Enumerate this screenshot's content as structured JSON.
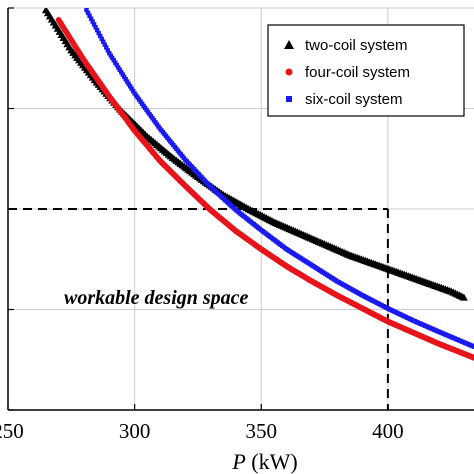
{
  "chart_data": {
    "type": "scatter",
    "xlabel": {
      "italic": "P",
      "unit": " (kW)"
    },
    "ylabel": "",
    "xlim": [
      250,
      434
    ],
    "ylim": [
      0,
      4
    ],
    "x_ticks": [
      250,
      300,
      350,
      400
    ],
    "x_tick_labels": [
      "250",
      "300",
      "350",
      "400"
    ],
    "y_ticks": [
      0,
      1,
      2,
      3,
      4
    ],
    "grid": true,
    "legend_position": "top-right",
    "series": [
      {
        "name": "two-coil system",
        "marker": "triangle",
        "color": "#000000",
        "x": [
          265,
          275,
          285,
          295,
          305,
          315,
          325,
          335,
          345,
          355,
          365,
          375,
          385,
          395,
          405,
          415,
          425,
          430
        ],
        "y": [
          3.98,
          3.58,
          3.26,
          2.97,
          2.72,
          2.51,
          2.32,
          2.14,
          2.0,
          1.87,
          1.76,
          1.65,
          1.54,
          1.45,
          1.36,
          1.27,
          1.18,
          1.12
        ]
      },
      {
        "name": "four-coil system",
        "marker": "circle",
        "color": "#e8141b",
        "x": [
          270,
          280,
          290,
          300,
          310,
          320,
          330,
          340,
          350,
          360,
          370,
          380,
          390,
          400,
          410,
          420,
          434
        ],
        "y": [
          3.88,
          3.48,
          3.12,
          2.78,
          2.48,
          2.23,
          1.99,
          1.78,
          1.6,
          1.43,
          1.28,
          1.14,
          1.01,
          0.88,
          0.77,
          0.66,
          0.52
        ]
      },
      {
        "name": "six-coil system",
        "marker": "square",
        "color": "#1a1aee",
        "x": [
          281,
          290,
          300,
          310,
          320,
          330,
          340,
          350,
          360,
          370,
          380,
          390,
          400,
          410,
          420,
          434
        ],
        "y": [
          3.98,
          3.55,
          3.15,
          2.8,
          2.49,
          2.22,
          1.99,
          1.79,
          1.6,
          1.44,
          1.28,
          1.14,
          1.01,
          0.89,
          0.78,
          0.63
        ]
      }
    ],
    "reference_lines": {
      "x": 400,
      "y": 2
    },
    "annotation": "workable design space"
  }
}
